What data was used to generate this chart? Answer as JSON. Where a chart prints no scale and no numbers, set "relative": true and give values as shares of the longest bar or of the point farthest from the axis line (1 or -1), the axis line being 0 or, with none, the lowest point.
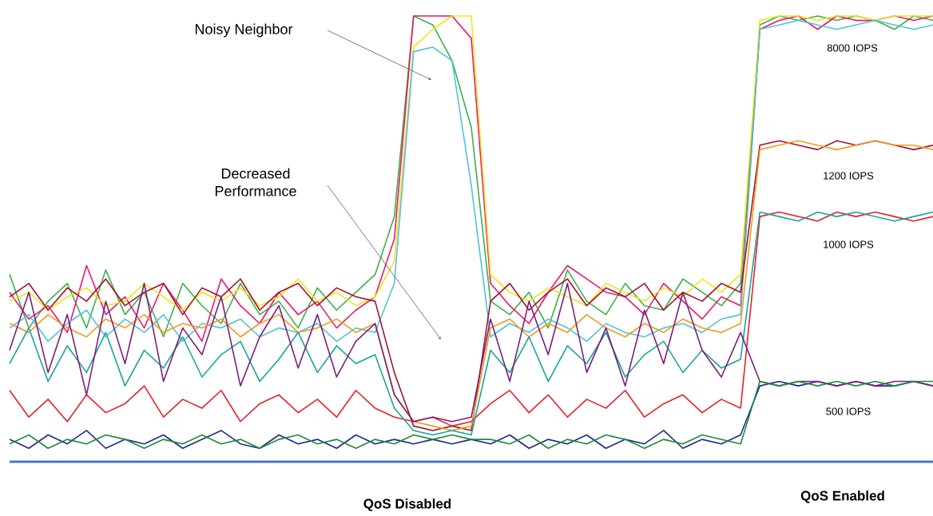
{
  "chart_data": {
    "type": "line",
    "relative": true,
    "categories": [
      null,
      null,
      null,
      null,
      null,
      null,
      null,
      null,
      null,
      null,
      null,
      null,
      null,
      null,
      null,
      null,
      null,
      null,
      null,
      null,
      null,
      null,
      null,
      null,
      null,
      null,
      null,
      null,
      null,
      null,
      null,
      null,
      null,
      null,
      null,
      null,
      null,
      null,
      null,
      null,
      null,
      null,
      null,
      null,
      null,
      null,
      null,
      null,
      null
    ],
    "series": [
      {
        "color": "#3db049",
        "values": [
          0.42,
          0.3,
          0.36,
          0.4,
          0.3,
          0.43,
          0.33,
          0.38,
          0.28,
          0.4,
          0.35,
          0.31,
          0.4,
          0.33,
          0.36,
          0.3,
          0.39,
          0.34,
          0.38,
          0.42,
          0.55,
          1.0,
          0.98,
          0.9,
          0.75,
          0.36,
          0.33,
          0.38,
          0.3,
          0.43,
          0.36,
          0.33,
          0.4,
          0.35,
          0.34,
          0.41,
          0.38,
          0.35,
          0.4,
          0.98,
          1.0,
          0.99,
          1.0,
          0.99,
          1.0,
          0.99,
          0.97,
          1.0,
          0.99
        ]
      },
      {
        "color": "#e8196f",
        "values": [
          0.38,
          0.32,
          0.35,
          0.29,
          0.44,
          0.33,
          0.37,
          0.3,
          0.4,
          0.34,
          0.27,
          0.41,
          0.35,
          0.31,
          0.38,
          0.33,
          0.36,
          0.3,
          0.34,
          0.37,
          0.5,
          1.0,
          1.0,
          1.0,
          0.95,
          0.4,
          0.35,
          0.31,
          0.38,
          0.44,
          0.41,
          0.38,
          0.37,
          0.33,
          0.4,
          0.36,
          0.32,
          0.37,
          0.35,
          0.97,
          0.99,
          1.0,
          0.97,
          1.0,
          0.99,
          0.99,
          1.0,
          0.99,
          1.0
        ]
      },
      {
        "color": "#f2e31b",
        "values": [
          0.36,
          0.38,
          0.34,
          0.37,
          0.39,
          0.35,
          0.36,
          0.4,
          0.37,
          0.34,
          0.38,
          0.36,
          0.39,
          0.35,
          0.37,
          0.41,
          0.36,
          0.38,
          0.35,
          0.37,
          0.45,
          0.93,
          0.97,
          1.0,
          1.0,
          0.42,
          0.38,
          0.36,
          0.39,
          0.37,
          0.35,
          0.4,
          0.38,
          0.36,
          0.39,
          0.37,
          0.41,
          0.38,
          0.42,
          0.99,
          1.0,
          1.0,
          0.99,
          1.0,
          1.0,
          0.99,
          1.0,
          1.0,
          1.0
        ]
      },
      {
        "color": "#4fc3d9",
        "values": [
          0.3,
          0.33,
          0.27,
          0.31,
          0.34,
          0.28,
          0.32,
          0.29,
          0.33,
          0.27,
          0.31,
          0.3,
          0.32,
          0.28,
          0.3,
          0.29,
          0.31,
          0.27,
          0.3,
          0.29,
          0.4,
          0.92,
          0.93,
          0.9,
          0.62,
          0.28,
          0.31,
          0.29,
          0.32,
          0.3,
          0.27,
          0.31,
          0.29,
          0.28,
          0.3,
          0.31,
          0.29,
          0.32,
          0.33,
          0.97,
          0.98,
          0.99,
          0.98,
          0.97,
          0.98,
          0.99,
          0.98,
          0.97,
          0.98
        ]
      },
      {
        "color": "#a3122e",
        "values": [
          0.37,
          0.4,
          0.34,
          0.39,
          0.36,
          0.41,
          0.35,
          0.38,
          0.4,
          0.33,
          0.39,
          0.37,
          0.41,
          0.34,
          0.38,
          0.4,
          0.35,
          0.39,
          0.37,
          0.36,
          0.2,
          0.08,
          0.07,
          0.08,
          0.07,
          0.36,
          0.4,
          0.34,
          0.38,
          0.41,
          0.35,
          0.39,
          0.37,
          0.4,
          0.34,
          0.38,
          0.36,
          0.4,
          0.38,
          0.71,
          0.72,
          0.71,
          0.7,
          0.72,
          0.71,
          0.72,
          0.71,
          0.7,
          0.71
        ]
      },
      {
        "color": "#f39a1e",
        "values": [
          0.31,
          0.29,
          0.33,
          0.3,
          0.28,
          0.32,
          0.3,
          0.33,
          0.29,
          0.31,
          0.3,
          0.32,
          0.28,
          0.31,
          0.33,
          0.29,
          0.3,
          0.32,
          0.29,
          0.31,
          0.15,
          0.09,
          0.08,
          0.07,
          0.08,
          0.3,
          0.32,
          0.28,
          0.31,
          0.29,
          0.33,
          0.3,
          0.28,
          0.31,
          0.29,
          0.32,
          0.3,
          0.29,
          0.31,
          0.7,
          0.71,
          0.72,
          0.71,
          0.7,
          0.71,
          0.72,
          0.71,
          0.71,
          0.7
        ]
      },
      {
        "color": "#e8202a",
        "values": [
          0.16,
          0.1,
          0.14,
          0.09,
          0.15,
          0.11,
          0.13,
          0.17,
          0.1,
          0.14,
          0.12,
          0.16,
          0.09,
          0.13,
          0.15,
          0.11,
          0.14,
          0.1,
          0.16,
          0.12,
          0.1,
          0.09,
          0.1,
          0.08,
          0.09,
          0.13,
          0.16,
          0.11,
          0.15,
          0.1,
          0.14,
          0.12,
          0.16,
          0.1,
          0.13,
          0.15,
          0.11,
          0.14,
          0.12,
          0.55,
          0.56,
          0.55,
          0.54,
          0.56,
          0.55,
          0.56,
          0.55,
          0.54,
          0.55
        ]
      },
      {
        "color": "#1ba39c",
        "values": [
          0.22,
          0.3,
          0.18,
          0.26,
          0.2,
          0.29,
          0.17,
          0.25,
          0.21,
          0.28,
          0.19,
          0.24,
          0.27,
          0.18,
          0.23,
          0.29,
          0.2,
          0.26,
          0.22,
          0.24,
          0.12,
          0.07,
          0.06,
          0.07,
          0.06,
          0.25,
          0.2,
          0.28,
          0.18,
          0.26,
          0.22,
          0.29,
          0.19,
          0.24,
          0.27,
          0.2,
          0.25,
          0.21,
          0.23,
          0.56,
          0.55,
          0.54,
          0.56,
          0.55,
          0.56,
          0.55,
          0.54,
          0.55,
          0.56
        ]
      },
      {
        "color": "#1f2a8a",
        "values": [
          0.05,
          0.03,
          0.06,
          0.04,
          0.07,
          0.03,
          0.05,
          0.04,
          0.06,
          0.03,
          0.05,
          0.07,
          0.04,
          0.03,
          0.06,
          0.04,
          0.05,
          0.03,
          0.06,
          0.04,
          0.05,
          0.04,
          0.05,
          0.04,
          0.05,
          0.04,
          0.06,
          0.03,
          0.05,
          0.04,
          0.06,
          0.03,
          0.05,
          0.04,
          0.07,
          0.03,
          0.05,
          0.04,
          0.06,
          0.17,
          0.18,
          0.17,
          0.18,
          0.17,
          0.18,
          0.17,
          0.17,
          0.18,
          0.17
        ]
      },
      {
        "color": "#7b1f7a",
        "values": [
          0.25,
          0.38,
          0.2,
          0.33,
          0.15,
          0.36,
          0.22,
          0.4,
          0.18,
          0.3,
          0.24,
          0.37,
          0.17,
          0.28,
          0.35,
          0.21,
          0.33,
          0.19,
          0.27,
          0.31,
          0.15,
          0.09,
          0.1,
          0.09,
          0.1,
          0.32,
          0.18,
          0.36,
          0.24,
          0.4,
          0.2,
          0.3,
          0.17,
          0.34,
          0.22,
          0.38,
          0.25,
          0.19,
          0.29,
          0.18,
          0.17,
          0.18,
          0.18,
          0.17,
          0.18,
          0.17,
          0.18,
          0.18,
          0.17
        ]
      },
      {
        "color": "#1e8c3a",
        "values": [
          0.04,
          0.06,
          0.03,
          0.05,
          0.04,
          0.06,
          0.05,
          0.03,
          0.05,
          0.04,
          0.06,
          0.04,
          0.05,
          0.03,
          0.05,
          0.06,
          0.04,
          0.05,
          0.03,
          0.05,
          0.04,
          0.06,
          0.05,
          0.06,
          0.05,
          0.05,
          0.04,
          0.06,
          0.03,
          0.05,
          0.04,
          0.06,
          0.05,
          0.03,
          0.05,
          0.04,
          0.06,
          0.05,
          0.04,
          0.18,
          0.17,
          0.18,
          0.17,
          0.18,
          0.17,
          0.18,
          0.17,
          0.18,
          0.18
        ]
      }
    ],
    "annotations": [
      "Noisy Neighbor",
      "Decreased Performance",
      "8000 IOPS",
      "1200 IOPS",
      "1000 IOPS",
      "500 IOPS",
      "QoS Disabled",
      "QoS Enabled"
    ]
  }
}
